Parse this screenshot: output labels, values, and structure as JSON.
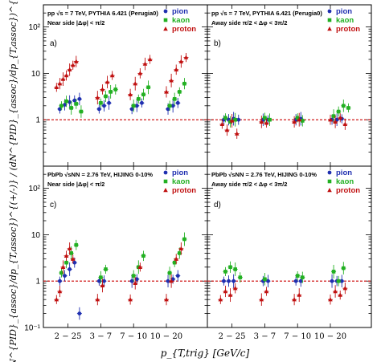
{
  "figure": {
    "ylabel": "(dN^{PID}_{assoc}/dp_{T,assoc})^{(+/-)} / (dN^{PID}_{assoc}/dp_{T,assoc})^{(+/+)}",
    "xlabel": "p_{T,trig} [GeV/c]",
    "colors": {
      "pion": "#1f2fb0",
      "kaon": "#22b022",
      "proton": "#c01010",
      "reference": "#cc0000"
    }
  },
  "chart_data": [
    {
      "type": "scatter",
      "panel": "a)",
      "line1": "pp  √s = 7 TeV, PYTHIA 6.421 (Perugia0)",
      "line2": "Near side |Δφ| < π/2",
      "legend": [
        "pion",
        "kaon",
        "proton"
      ],
      "categories": [
        "2 − 25",
        "3 − 7",
        "7 − 10",
        "10 − 20"
      ],
      "yscale": "log",
      "ylim": [
        0.1,
        300
      ],
      "yticks": [
        "10⁻¹",
        "1",
        "10",
        "10²"
      ],
      "reference_line": 1,
      "series": [
        {
          "name": "pion",
          "points": [
            [
              1.0,
              1.7
            ],
            [
              1.15,
              2.1
            ],
            [
              1.3,
              2.4
            ],
            [
              1.45,
              2.6
            ],
            [
              1.6,
              2.8
            ],
            [
              2.2,
              1.7
            ],
            [
              2.35,
              2.0
            ],
            [
              2.5,
              2.3
            ],
            [
              3.2,
              1.7
            ],
            [
              3.35,
              2.0
            ],
            [
              3.5,
              2.3
            ],
            [
              4.3,
              1.7
            ],
            [
              4.45,
              2.0
            ],
            [
              4.6,
              2.3
            ]
          ]
        },
        {
          "name": "kaon",
          "points": [
            [
              1.05,
              2.0
            ],
            [
              1.2,
              2.5
            ],
            [
              1.35,
              1.8
            ],
            [
              1.5,
              2.2
            ],
            [
              1.65,
              1.5
            ],
            [
              2.25,
              2.3
            ],
            [
              2.4,
              3.2
            ],
            [
              2.55,
              4.0
            ],
            [
              2.7,
              4.5
            ],
            [
              3.25,
              2.0
            ],
            [
              3.4,
              2.8
            ],
            [
              3.55,
              3.5
            ],
            [
              3.7,
              5.0
            ],
            [
              4.35,
              2.0
            ],
            [
              4.5,
              2.8
            ],
            [
              4.65,
              4.0
            ],
            [
              4.8,
              6.0
            ]
          ]
        },
        {
          "name": "proton",
          "points": [
            [
              0.9,
              5.0
            ],
            [
              1.0,
              6.0
            ],
            [
              1.1,
              7.5
            ],
            [
              1.2,
              9.0
            ],
            [
              1.3,
              12.0
            ],
            [
              1.4,
              15.0
            ],
            [
              1.5,
              18.0
            ],
            [
              2.15,
              3.0
            ],
            [
              2.3,
              4.5
            ],
            [
              2.45,
              6.5
            ],
            [
              2.6,
              9.0
            ],
            [
              3.15,
              3.5
            ],
            [
              3.3,
              6.0
            ],
            [
              3.45,
              10.0
            ],
            [
              3.6,
              16.0
            ],
            [
              3.75,
              20.0
            ],
            [
              4.25,
              4.0
            ],
            [
              4.4,
              7.0
            ],
            [
              4.55,
              12.0
            ],
            [
              4.7,
              18.0
            ],
            [
              4.85,
              22.0
            ]
          ]
        }
      ]
    },
    {
      "type": "scatter",
      "panel": "b)",
      "line1": "pp  √s = 7 TeV, PYTHIA 6.421 (Perugia0)",
      "line2": "Away side π/2 < Δφ < 3π/2",
      "legend": [
        "pion",
        "kaon",
        "proton"
      ],
      "categories": [
        "2 − 25",
        "3 − 7",
        "7 − 10",
        "10 − 20"
      ],
      "yscale": "log",
      "ylim": [
        0.1,
        300
      ],
      "yticks": [
        "10⁻¹",
        "1",
        "10",
        "10²"
      ],
      "reference_line": 1,
      "series": [
        {
          "name": "pion",
          "points": [
            [
              1.0,
              1.0
            ],
            [
              1.15,
              1.0
            ],
            [
              1.3,
              1.05
            ],
            [
              1.45,
              1.0
            ],
            [
              2.2,
              1.0
            ],
            [
              2.35,
              1.0
            ],
            [
              3.2,
              1.0
            ],
            [
              3.35,
              1.05
            ],
            [
              4.3,
              1.0
            ],
            [
              4.45,
              1.0
            ],
            [
              4.6,
              1.05
            ]
          ]
        },
        {
          "name": "kaon",
          "points": [
            [
              1.05,
              1.1
            ],
            [
              1.2,
              0.9
            ],
            [
              1.35,
              1.0
            ],
            [
              2.25,
              1.1
            ],
            [
              2.4,
              1.0
            ],
            [
              3.25,
              1.1
            ],
            [
              3.4,
              0.95
            ],
            [
              4.35,
              1.2
            ],
            [
              4.5,
              1.5
            ],
            [
              4.65,
              2.0
            ],
            [
              4.8,
              1.8
            ]
          ]
        },
        {
          "name": "proton",
          "points": [
            [
              0.95,
              0.8
            ],
            [
              1.1,
              0.6
            ],
            [
              1.25,
              0.95
            ],
            [
              1.4,
              0.5
            ],
            [
              2.15,
              0.9
            ],
            [
              2.3,
              0.85
            ],
            [
              3.15,
              0.9
            ],
            [
              3.3,
              1.0
            ],
            [
              4.25,
              1.0
            ],
            [
              4.4,
              0.9
            ],
            [
              4.55,
              1.1
            ],
            [
              4.7,
              0.8
            ]
          ]
        }
      ]
    },
    {
      "type": "scatter",
      "panel": "c)",
      "line1": "PbPb  √sNN = 2.76 TeV, HIJING 0-10%",
      "line2": "Near side |Δφ| < π/2",
      "legend": [
        "pion",
        "kaon",
        "proton"
      ],
      "categories": [
        "2 − 25",
        "3 − 7",
        "7 − 10",
        "10 − 20"
      ],
      "yscale": "log",
      "ylim": [
        0.1,
        300
      ],
      "yticks": [
        "10⁻¹",
        "1",
        "10",
        "10²"
      ],
      "reference_line": 1,
      "series": [
        {
          "name": "pion",
          "points": [
            [
              1.0,
              1.0
            ],
            [
              1.15,
              1.3
            ],
            [
              1.3,
              1.8
            ],
            [
              1.45,
              2.5
            ],
            [
              1.6,
              0.2
            ],
            [
              2.2,
              1.0
            ],
            [
              2.35,
              1.0
            ],
            [
              3.2,
              1.0
            ],
            [
              3.35,
              1.1
            ],
            [
              4.3,
              1.0
            ],
            [
              4.45,
              1.1
            ],
            [
              4.6,
              1.3
            ]
          ]
        },
        {
          "name": "kaon",
          "points": [
            [
              1.05,
              1.5
            ],
            [
              1.2,
              2.5
            ],
            [
              1.35,
              4.0
            ],
            [
              1.5,
              6.0
            ],
            [
              2.25,
              1.2
            ],
            [
              2.4,
              1.8
            ],
            [
              3.25,
              1.3
            ],
            [
              3.4,
              2.0
            ],
            [
              3.55,
              3.5
            ],
            [
              4.35,
              1.5
            ],
            [
              4.5,
              2.5
            ],
            [
              4.65,
              4.0
            ],
            [
              4.8,
              8.0
            ]
          ]
        },
        {
          "name": "proton",
          "points": [
            [
              0.9,
              0.4
            ],
            [
              1.0,
              0.6
            ],
            [
              1.1,
              2.0
            ],
            [
              1.2,
              3.5
            ],
            [
              1.3,
              5.0
            ],
            [
              1.4,
              3.0
            ],
            [
              2.15,
              0.4
            ],
            [
              2.3,
              0.8
            ],
            [
              3.15,
              0.4
            ],
            [
              3.3,
              0.9
            ],
            [
              3.45,
              2.0
            ],
            [
              4.25,
              0.4
            ],
            [
              4.4,
              1.0
            ],
            [
              4.55,
              3.0
            ],
            [
              4.7,
              5.0
            ]
          ]
        }
      ]
    },
    {
      "type": "scatter",
      "panel": "d)",
      "line1": "PbPb  √sNN = 2.76 TeV, HIJING 0-10%",
      "line2": "Away side π/2 < Δφ < 3π/2",
      "legend": [
        "pion",
        "kaon",
        "proton"
      ],
      "categories": [
        "2 − 25",
        "3 − 7",
        "7 − 10",
        "10 − 20"
      ],
      "yscale": "log",
      "ylim": [
        0.1,
        300
      ],
      "yticks": [
        "10⁻¹",
        "1",
        "10",
        "10²"
      ],
      "reference_line": 1,
      "series": [
        {
          "name": "pion",
          "points": [
            [
              1.0,
              1.0
            ],
            [
              1.15,
              1.0
            ],
            [
              1.3,
              1.0
            ],
            [
              2.2,
              1.0
            ],
            [
              2.35,
              1.0
            ],
            [
              3.2,
              1.0
            ],
            [
              3.35,
              1.0
            ],
            [
              4.3,
              1.0
            ],
            [
              4.45,
              1.0
            ],
            [
              4.6,
              1.0
            ]
          ]
        },
        {
          "name": "kaon",
          "points": [
            [
              1.05,
              1.6
            ],
            [
              1.2,
              2.0
            ],
            [
              1.35,
              1.8
            ],
            [
              1.5,
              1.2
            ],
            [
              2.25,
              1.1
            ],
            [
              3.25,
              1.3
            ],
            [
              3.4,
              1.2
            ],
            [
              4.35,
              1.6
            ],
            [
              4.5,
              1.0
            ],
            [
              4.65,
              1.9
            ]
          ]
        },
        {
          "name": "proton",
          "points": [
            [
              0.9,
              0.4
            ],
            [
              1.05,
              0.6
            ],
            [
              1.2,
              0.5
            ],
            [
              1.35,
              0.7
            ],
            [
              2.15,
              0.4
            ],
            [
              2.3,
              0.6
            ],
            [
              3.15,
              0.4
            ],
            [
              3.3,
              0.5
            ],
            [
              4.25,
              0.4
            ],
            [
              4.4,
              0.6
            ],
            [
              4.55,
              0.5
            ],
            [
              4.7,
              0.7
            ]
          ]
        }
      ]
    }
  ]
}
